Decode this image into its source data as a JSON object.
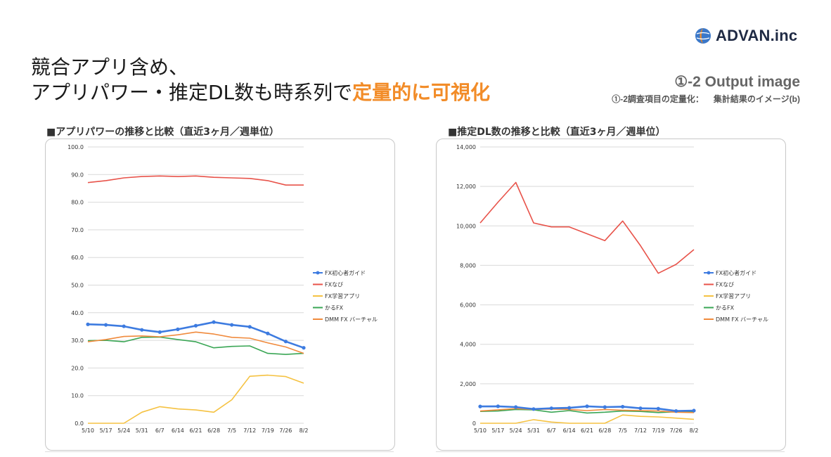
{
  "brand": {
    "name": "ADVAN.inc",
    "logo_icon": "globe-drop-icon"
  },
  "headline": {
    "line1": "競合アプリ含め、",
    "line2_prefix": "アプリパワー・推定DL数も時系列で",
    "line2_accent": "定量的に可視化"
  },
  "output": {
    "label": "①-2 Output image",
    "sub_left": "①-2調査項目の定量化：",
    "sub_right": "集計結果のイメージ(b)"
  },
  "colors": {
    "accent": "#f28c28",
    "series": [
      "#3d7be0",
      "#e8534a",
      "#f5c242",
      "#3aa655",
      "#f08a3c"
    ]
  },
  "chart_data": [
    {
      "type": "line",
      "title": "■アプリパワーの推移と比較（直近3ヶ月／週単位）",
      "categories": [
        "5/10",
        "5/17",
        "5/24",
        "5/31",
        "6/7",
        "6/14",
        "6/21",
        "6/28",
        "7/5",
        "7/12",
        "7/19",
        "7/26",
        "8/2"
      ],
      "ylim": [
        0,
        100
      ],
      "yticks": [
        "0.0",
        "10.0",
        "20.0",
        "30.0",
        "40.0",
        "50.0",
        "60.0",
        "70.0",
        "80.0",
        "90.0",
        "100.0"
      ],
      "grid": true,
      "legend": "right",
      "series": [
        {
          "name": "FX初心者ガイド",
          "markers": true,
          "values": [
            35.8,
            35.6,
            35.1,
            33.8,
            33.0,
            34.0,
            35.3,
            36.6,
            35.6,
            34.9,
            32.5,
            29.6,
            27.3
          ]
        },
        {
          "name": "FXなび",
          "markers": false,
          "values": [
            87.1,
            87.8,
            88.8,
            89.3,
            89.5,
            89.3,
            89.5,
            89.0,
            88.8,
            88.6,
            87.8,
            86.2,
            86.2
          ]
        },
        {
          "name": "FX学習アプリ",
          "markers": false,
          "values": [
            0,
            0,
            0,
            4.0,
            6.0,
            5.2,
            4.8,
            4.0,
            8.5,
            17.0,
            17.4,
            16.9,
            14.5
          ]
        },
        {
          "name": "かるFX",
          "markers": false,
          "values": [
            29.9,
            30.0,
            29.5,
            31.1,
            31.2,
            30.3,
            29.5,
            27.3,
            27.8,
            28.0,
            25.3,
            24.9,
            25.3
          ]
        },
        {
          "name": "DMM FX バーチャル",
          "markers": false,
          "values": [
            29.5,
            30.3,
            31.4,
            31.6,
            31.3,
            32.0,
            33.0,
            32.3,
            31.1,
            30.8,
            29.1,
            27.6,
            25.3
          ]
        }
      ]
    },
    {
      "type": "line",
      "title": "■推定DL数の推移と比較（直近3ヶ月／週単位）",
      "categories": [
        "5/10",
        "5/17",
        "5/24",
        "5/31",
        "6/7",
        "6/14",
        "6/21",
        "6/28",
        "7/5",
        "7/12",
        "7/19",
        "7/26",
        "8/2"
      ],
      "ylim": [
        0,
        14000
      ],
      "yticks": [
        "0",
        "2,000",
        "4,000",
        "6,000",
        "8,000",
        "10,000",
        "12,000",
        "14,000"
      ],
      "grid": true,
      "legend": "right",
      "series": [
        {
          "name": "FX初心者ガイド",
          "markers": true,
          "values": [
            850,
            860,
            820,
            720,
            760,
            780,
            860,
            820,
            840,
            760,
            740,
            620,
            640
          ]
        },
        {
          "name": "FXなび",
          "markers": false,
          "values": [
            10150,
            11200,
            12200,
            10150,
            9950,
            9950,
            9600,
            9250,
            10250,
            9000,
            7600,
            8050,
            8800
          ]
        },
        {
          "name": "FX学習アプリ",
          "markers": false,
          "values": [
            0,
            0,
            0,
            180,
            60,
            0,
            0,
            0,
            420,
            350,
            320,
            260,
            200
          ]
        },
        {
          "name": "かるFX",
          "markers": false,
          "values": [
            600,
            620,
            700,
            680,
            560,
            640,
            520,
            560,
            620,
            600,
            540,
            580,
            600
          ]
        },
        {
          "name": "DMM FX バーチャル",
          "markers": false,
          "values": [
            620,
            680,
            740,
            700,
            720,
            700,
            640,
            700,
            660,
            640,
            620,
            560,
            540
          ]
        }
      ]
    }
  ]
}
